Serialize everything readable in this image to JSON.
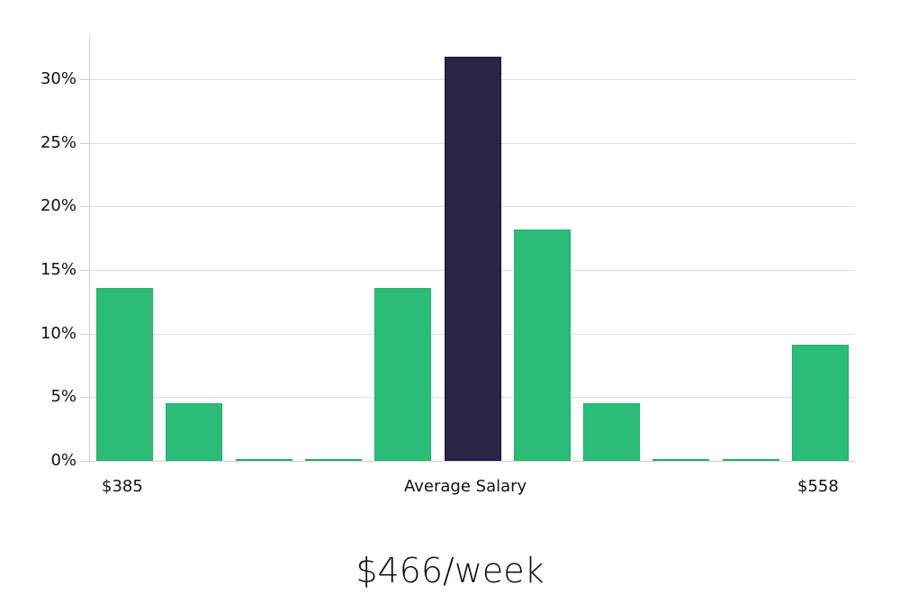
{
  "chart_data": {
    "type": "bar",
    "title": "",
    "xlabel": "Average Salary",
    "ylabel": "",
    "ylim": [
      0,
      33
    ],
    "yticks": [
      "0%",
      "5%",
      "10%",
      "15%",
      "20%",
      "25%",
      "30%"
    ],
    "grid": true,
    "legend": null,
    "categories": [
      "bin1",
      "bin2",
      "bin3",
      "bin4",
      "bin5",
      "bin6",
      "bin7",
      "bin8",
      "bin9",
      "bin10",
      "bin11"
    ],
    "values": [
      13.6,
      4.5,
      0,
      0,
      13.6,
      31.8,
      18.2,
      4.5,
      0,
      0,
      9.1
    ],
    "highlight_index": 5,
    "x_axis_labels": {
      "left": "$385",
      "center": "Average Salary",
      "right": "$558"
    },
    "annotation": "$466/week"
  },
  "colors": {
    "bar": "#2bbd77",
    "bar_border": "#22b06d",
    "highlight": "#282546",
    "highlight_border": "#14123a",
    "grid": "#dcdcdc"
  },
  "labels": {
    "min_salary": "$385",
    "axis_title": "Average Salary",
    "max_salary": "$558",
    "average_weekly": "$466/week"
  }
}
